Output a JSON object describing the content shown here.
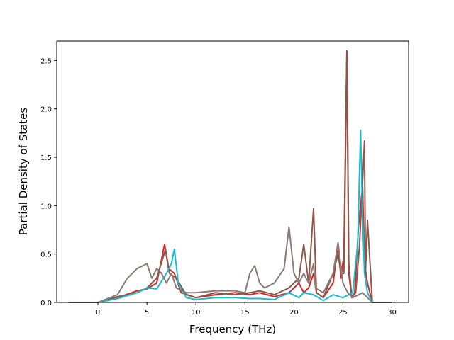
{
  "chart_data": {
    "type": "line",
    "title": "",
    "xlabel": "Frequency (THz)",
    "ylabel": "Partial Density of States",
    "xlim": [
      -4.2,
      31.7
    ],
    "ylim": [
      0,
      2.7
    ],
    "xticks": [
      0,
      5,
      10,
      15,
      20,
      25,
      30
    ],
    "yticks": [
      0.0,
      0.5,
      1.0,
      1.5,
      2.0,
      2.5
    ],
    "xtick_labels": [
      "0",
      "5",
      "10",
      "15",
      "20",
      "25",
      "30"
    ],
    "ytick_labels": [
      "0.0",
      "0.5",
      "1.0",
      "1.5",
      "2.0",
      "2.5"
    ],
    "grid": false,
    "legend": "none",
    "series": [
      {
        "color": "#d62728",
        "x": [
          -3,
          0,
          2,
          4,
          5,
          6,
          6.8,
          7.2,
          7.8,
          8.5,
          10,
          12,
          14,
          15.5,
          16.5,
          18,
          19.5,
          20.5,
          21,
          21.5,
          22,
          22.3,
          23,
          24,
          24.5,
          24.8,
          25.1,
          25.4,
          25.6,
          25.9,
          26.2,
          26.6,
          27,
          27.2,
          27.5,
          28,
          30
        ],
        "y": [
          0,
          0,
          0.05,
          0.12,
          0.14,
          0.2,
          0.6,
          0.35,
          0.3,
          0.1,
          0.05,
          0.08,
          0.1,
          0.08,
          0.1,
          0.06,
          0.1,
          0.2,
          0.1,
          0.15,
          0.3,
          0.1,
          0.05,
          0.2,
          0.6,
          0.25,
          0.5,
          2.6,
          0.3,
          0.05,
          0.1,
          0.8,
          1.2,
          0.4,
          0.2,
          0,
          0
        ]
      },
      {
        "color": "#8c564b",
        "x": [
          -3,
          0,
          2,
          4,
          5,
          6,
          6.9,
          7.3,
          8,
          9,
          10,
          12,
          14,
          15.5,
          16.5,
          18,
          19.5,
          20.5,
          21,
          21.5,
          22,
          22.3,
          23,
          24,
          24.5,
          24.8,
          25.1,
          25.4,
          25.6,
          25.9,
          26.3,
          26.7,
          27.2,
          27.3,
          27.5,
          28,
          30
        ],
        "y": [
          0,
          0,
          0.06,
          0.1,
          0.15,
          0.25,
          0.55,
          0.3,
          0.25,
          0.08,
          0.05,
          0.1,
          0.08,
          0.1,
          0.12,
          0.08,
          0.15,
          0.25,
          0.6,
          0.2,
          0.97,
          0.1,
          0.05,
          0.3,
          0.5,
          0.3,
          0.3,
          2.59,
          0.4,
          0.05,
          0.1,
          0.6,
          1.67,
          0.3,
          0.85,
          0,
          0
        ]
      },
      {
        "color": "#17becf",
        "x": [
          -3,
          0,
          2,
          4,
          5,
          6,
          7,
          7.5,
          7.8,
          8.2,
          9,
          10,
          12,
          14,
          15.5,
          16.5,
          18,
          19.5,
          20.5,
          21,
          22,
          23,
          24,
          25,
          26,
          26.5,
          26.8,
          27,
          27.2,
          27.5,
          28,
          30
        ],
        "y": [
          0,
          0,
          0.04,
          0.1,
          0.15,
          0.14,
          0.3,
          0.4,
          0.55,
          0.2,
          0.05,
          0.03,
          0.05,
          0.05,
          0.04,
          0.04,
          0.03,
          0.1,
          0.05,
          0.1,
          0.08,
          0.02,
          0.08,
          0.05,
          0.1,
          0.6,
          1.78,
          0.9,
          0.3,
          0.1,
          0,
          0
        ]
      },
      {
        "color": "#8a7a7a",
        "x": [
          -3,
          0,
          2,
          3,
          4,
          5,
          5.5,
          6,
          6.5,
          7,
          7.5,
          8,
          9,
          10,
          12,
          14,
          15,
          15.5,
          16,
          16.5,
          17,
          18,
          19,
          19.5,
          20,
          20.5,
          21,
          21.5,
          22,
          22.2,
          23,
          24,
          24.5,
          25,
          25.5,
          26,
          27,
          28,
          30
        ],
        "y": [
          0,
          0,
          0.08,
          0.25,
          0.35,
          0.4,
          0.25,
          0.35,
          0.3,
          0.2,
          0.3,
          0.15,
          0.1,
          0.1,
          0.12,
          0.12,
          0.1,
          0.3,
          0.38,
          0.2,
          0.15,
          0.2,
          0.35,
          0.78,
          0.3,
          0.2,
          0.3,
          0.2,
          0.4,
          0.15,
          0.1,
          0.3,
          0.62,
          0.2,
          0.1,
          0.05,
          0.1,
          0,
          0
        ]
      }
    ]
  }
}
